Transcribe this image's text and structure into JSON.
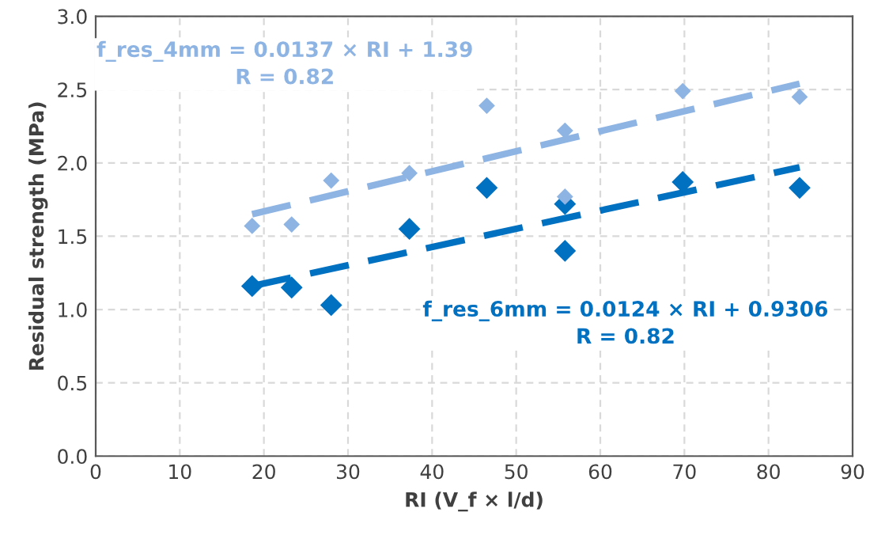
{
  "chart_data": {
    "type": "scatter",
    "xlabel": "RI (V_f × l/d)",
    "ylabel": "Residual strength (MPa)",
    "xlim": [
      0,
      90
    ],
    "ylim": [
      0,
      3
    ],
    "xticks": [
      0,
      10,
      20,
      30,
      40,
      50,
      60,
      70,
      80,
      90
    ],
    "yticks": [
      {
        "value": 0,
        "label": "0.0"
      },
      {
        "value": 0.5,
        "label": "0.5"
      },
      {
        "value": 1,
        "label": "1.0"
      },
      {
        "value": 1.5,
        "label": "1.5"
      },
      {
        "value": 2,
        "label": "2.0"
      },
      {
        "value": 2.5,
        "label": "2.5"
      },
      {
        "value": 3,
        "label": "3.0"
      }
    ],
    "grid": true,
    "marker": "diamond",
    "series": [
      {
        "color": "#8eb4e3",
        "x": [
          18.6,
          23.3,
          28,
          37.3,
          46.5,
          55.8,
          55.8,
          69.8,
          83.7
        ],
        "values": [
          1.57,
          1.58,
          1.88,
          1.93,
          2.39,
          2.22,
          1.77,
          2.49,
          2.45
        ]
      },
      {
        "color": "#0070c0",
        "x": [
          18.6,
          23.3,
          28,
          37.3,
          46.5,
          55.8,
          55.8,
          69.8,
          83.7
        ],
        "values": [
          1.16,
          1.15,
          1.03,
          1.55,
          1.83,
          1.72,
          1.4,
          1.87,
          1.83
        ]
      },
      {
        "type": "line",
        "color": "#8eb4e3",
        "line_style": "dashed",
        "marker": "none",
        "x": [
          18.6,
          83.7
        ],
        "values": [
          1.65,
          2.54
        ]
      },
      {
        "type": "line",
        "color": "#0070c0",
        "line_style": "dashed",
        "marker": "none",
        "x": [
          18.6,
          83.7
        ],
        "values": [
          1.16,
          1.97
        ]
      }
    ],
    "annotations": [
      "f_res_4mm = 0.0137 × RI + 1.39\nR = 0.82",
      "f_res_6mm = 0.0124 × RI + 0.9306\nR = 0.82"
    ]
  }
}
